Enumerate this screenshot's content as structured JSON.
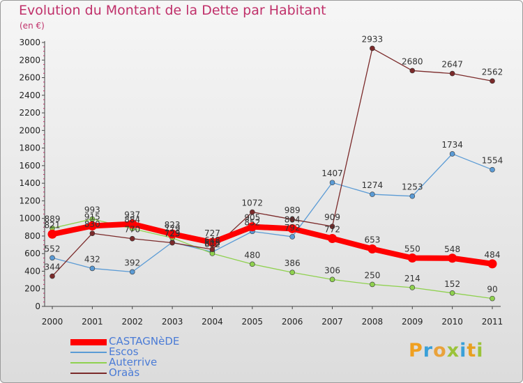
{
  "title": "Evolution du Montant de la Dette par Habitant",
  "unit_label": "(en €)",
  "logo": {
    "text": "Proxiti",
    "colors": [
      "#f0a020",
      "#3aa0d8",
      "#e9a23b",
      "#9bc33a",
      "#3aa0d8",
      "#e8a020",
      "#9bc33a"
    ]
  },
  "chart_data": {
    "type": "line",
    "title": "Evolution du Montant de la Dette par Habitant",
    "ylabel": "(en €)",
    "xlabel": "",
    "x": [
      "2000",
      "2001",
      "2002",
      "2003",
      "2004",
      "2005",
      "2006",
      "2007",
      "2008",
      "2009",
      "2010",
      "2011"
    ],
    "ylim": [
      0,
      3000
    ],
    "yticks": [
      "0",
      "200",
      "400",
      "600",
      "800",
      "1000",
      "1200",
      "1400",
      "1600",
      "1800",
      "2000",
      "2200",
      "2400",
      "2600",
      "2800",
      "3000"
    ],
    "grid": false,
    "legend_position": "bottom-left",
    "series": [
      {
        "name": "CASTAGNèDE",
        "color": "#ff0000",
        "width": 8,
        "marker": 6,
        "values": [
          821,
          915,
          937,
          823,
          727,
          905,
          884,
          772,
          653,
          550,
          548,
          484
        ],
        "labels": [
          "821",
          "915",
          "937",
          "823",
          "727",
          "905",
          "884",
          "772",
          "653",
          "550",
          "548",
          "484"
        ]
      },
      {
        "name": "Escos",
        "color": "#5b9bd5",
        "width": 1.3,
        "marker": 3.5,
        "values": [
          552,
          432,
          392,
          729,
          618,
          852,
          792,
          1407,
          1274,
          1253,
          1734,
          1554
        ],
        "labels": [
          "552",
          "432",
          "392",
          "729",
          "618",
          "852",
          "792",
          "1407",
          "1274",
          "1253",
          "1734",
          "1554"
        ]
      },
      {
        "name": "Auterrive",
        "color": "#8fd14f",
        "width": 1.3,
        "marker": 3.5,
        "values": [
          889,
          993,
          884,
          779,
          602,
          480,
          386,
          306,
          250,
          214,
          152,
          90
        ],
        "labels": [
          "889",
          "993",
          "884",
          "779",
          "602",
          "480",
          "386",
          "306",
          "250",
          "214",
          "152",
          "90"
        ]
      },
      {
        "name": "Oraàs",
        "color": "#7b2a2a",
        "width": 1.3,
        "marker": 3.5,
        "values": [
          344,
          830,
          770,
          723,
          648,
          1072,
          989,
          909,
          2933,
          2680,
          2647,
          2562
        ],
        "labels": [
          "344",
          "830",
          "770",
          "723",
          "648",
          "1072",
          "989",
          "909",
          "2933",
          "2680",
          "2647",
          "2562"
        ]
      }
    ]
  }
}
